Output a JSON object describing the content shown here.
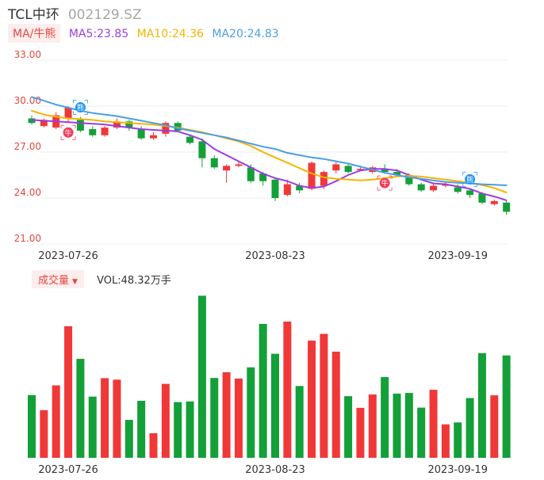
{
  "header": {
    "name": "TCL中环",
    "code": "002129.SZ"
  },
  "ma_legend": {
    "type_label": "MA/牛熊",
    "items": [
      {
        "label": "MA5:23.85",
        "color": "#9b3ddf"
      },
      {
        "label": "MA10:24.36",
        "color": "#f5b400"
      },
      {
        "label": "MA20:24.83",
        "color": "#4a9ee8"
      }
    ]
  },
  "vol_legend": {
    "type_label": "成交量",
    "value_label": "VOL:48.32万手"
  },
  "icons": {
    "bull_label": "牛",
    "bear_label": "熊",
    "markers": [
      {
        "type": "bear",
        "index": 4
      },
      {
        "type": "bull",
        "index": 3
      },
      {
        "type": "bull",
        "index": 29
      },
      {
        "type": "bear",
        "index": 36
      }
    ]
  },
  "colors": {
    "up": "#f03838",
    "down": "#13a038",
    "grid": "#ececec",
    "axis_label": "#e5473f",
    "date": "#333333"
  },
  "chart_data": [
    {
      "type": "candlestick",
      "y_ticks": [
        "33.00",
        "30.00",
        "27.00",
        "24.00",
        "21.00"
      ],
      "ylim": [
        21,
        33
      ],
      "x_labels": [
        {
          "index": 3,
          "label": "2023-07-26"
        },
        {
          "index": 20,
          "label": "2023-08-23"
        },
        {
          "index": 35,
          "label": "2023-09-19"
        }
      ],
      "candles": [
        {
          "o": 29.2,
          "c": 28.9,
          "h": 29.4,
          "l": 28.8
        },
        {
          "o": 28.7,
          "c": 29.1,
          "h": 29.2,
          "l": 28.6
        },
        {
          "o": 28.6,
          "c": 29.4,
          "h": 29.6,
          "l": 28.5
        },
        {
          "o": 29.2,
          "c": 29.9,
          "h": 30.0,
          "l": 28.9
        },
        {
          "o": 29.1,
          "c": 28.4,
          "h": 29.3,
          "l": 28.3
        },
        {
          "o": 28.5,
          "c": 28.1,
          "h": 28.7,
          "l": 28.0
        },
        {
          "o": 28.1,
          "c": 28.6,
          "h": 28.7,
          "l": 28.0
        },
        {
          "o": 28.6,
          "c": 29.0,
          "h": 29.2,
          "l": 28.5
        },
        {
          "o": 29.0,
          "c": 28.6,
          "h": 29.1,
          "l": 28.4
        },
        {
          "o": 28.5,
          "c": 27.9,
          "h": 28.7,
          "l": 27.8
        },
        {
          "o": 27.9,
          "c": 28.1,
          "h": 28.3,
          "l": 27.8
        },
        {
          "o": 28.2,
          "c": 28.9,
          "h": 29.0,
          "l": 28.0
        },
        {
          "o": 28.9,
          "c": 28.4,
          "h": 29.0,
          "l": 28.3
        },
        {
          "o": 28.0,
          "c": 27.6,
          "h": 28.1,
          "l": 27.5
        },
        {
          "o": 27.7,
          "c": 26.6,
          "h": 27.9,
          "l": 26.0
        },
        {
          "o": 26.6,
          "c": 26.0,
          "h": 26.8,
          "l": 25.9
        },
        {
          "o": 25.8,
          "c": 26.1,
          "h": 26.2,
          "l": 25.0
        },
        {
          "o": 26.1,
          "c": 26.2,
          "h": 26.4,
          "l": 26.0
        },
        {
          "o": 26.0,
          "c": 25.1,
          "h": 26.2,
          "l": 25.0
        },
        {
          "o": 25.6,
          "c": 25.1,
          "h": 25.7,
          "l": 24.8
        },
        {
          "o": 25.2,
          "c": 24.0,
          "h": 25.3,
          "l": 23.8
        },
        {
          "o": 24.2,
          "c": 24.9,
          "h": 25.2,
          "l": 24.1
        },
        {
          "o": 24.8,
          "c": 24.5,
          "h": 25.0,
          "l": 24.3
        },
        {
          "o": 24.6,
          "c": 26.3,
          "h": 26.4,
          "l": 24.5
        },
        {
          "o": 24.8,
          "c": 25.7,
          "h": 25.8,
          "l": 24.6
        },
        {
          "o": 25.8,
          "c": 26.2,
          "h": 26.4,
          "l": 25.6
        },
        {
          "o": 26.1,
          "c": 25.7,
          "h": 26.2,
          "l": 25.6
        },
        {
          "o": 25.9,
          "c": 25.9,
          "h": 26.1,
          "l": 25.8
        },
        {
          "o": 25.7,
          "c": 26.0,
          "h": 26.1,
          "l": 25.6
        },
        {
          "o": 25.9,
          "c": 25.7,
          "h": 26.2,
          "l": 25.6
        },
        {
          "o": 25.7,
          "c": 25.5,
          "h": 25.9,
          "l": 25.4
        },
        {
          "o": 25.5,
          "c": 24.9,
          "h": 25.6,
          "l": 24.8
        },
        {
          "o": 24.9,
          "c": 24.5,
          "h": 25.0,
          "l": 24.4
        },
        {
          "o": 24.5,
          "c": 24.8,
          "h": 25.0,
          "l": 24.4
        },
        {
          "o": 24.8,
          "c": 24.9,
          "h": 25.1,
          "l": 24.7
        },
        {
          "o": 24.7,
          "c": 24.4,
          "h": 24.9,
          "l": 24.3
        },
        {
          "o": 24.5,
          "c": 24.2,
          "h": 24.6,
          "l": 24.0
        },
        {
          "o": 24.3,
          "c": 23.7,
          "h": 24.4,
          "l": 23.6
        },
        {
          "o": 23.6,
          "c": 23.8,
          "h": 23.9,
          "l": 23.5
        },
        {
          "o": 23.7,
          "c": 23.1,
          "h": 23.8,
          "l": 22.9
        }
      ],
      "series": [
        {
          "name": "MA5",
          "color": "#9b3ddf",
          "values": [
            29.1,
            29.05,
            29.0,
            28.95,
            28.9,
            28.85,
            28.8,
            28.7,
            28.6,
            28.5,
            28.45,
            28.4,
            28.35,
            28.1,
            27.8,
            27.2,
            26.8,
            26.4,
            26.0,
            25.6,
            25.3,
            25.1,
            24.8,
            24.65,
            24.75,
            25.1,
            25.5,
            25.8,
            25.9,
            25.9,
            25.8,
            25.5,
            25.2,
            24.95,
            24.9,
            24.75,
            24.6,
            24.3,
            24.1,
            23.85
          ]
        },
        {
          "name": "MA10",
          "color": "#f5b400",
          "values": [
            29.7,
            29.45,
            29.3,
            29.2,
            29.15,
            29.1,
            29.0,
            28.95,
            28.9,
            28.85,
            28.8,
            28.7,
            28.6,
            28.45,
            28.3,
            28.1,
            27.9,
            27.7,
            27.4,
            27.0,
            26.65,
            26.3,
            25.95,
            25.6,
            25.35,
            25.25,
            25.2,
            25.15,
            25.2,
            25.3,
            25.4,
            25.45,
            25.4,
            25.3,
            25.2,
            25.1,
            25.0,
            24.85,
            24.65,
            24.36
          ]
        },
        {
          "name": "MA20",
          "color": "#4a9ee8",
          "values": [
            30.6,
            30.35,
            30.1,
            29.9,
            29.7,
            29.55,
            29.45,
            29.35,
            29.2,
            29.05,
            28.9,
            28.75,
            28.55,
            28.4,
            28.25,
            28.1,
            27.95,
            27.75,
            27.55,
            27.35,
            27.2,
            26.95,
            26.8,
            26.65,
            26.55,
            26.4,
            26.25,
            26.05,
            25.85,
            25.65,
            25.5,
            25.35,
            25.25,
            25.15,
            25.05,
            25.0,
            24.95,
            24.9,
            24.87,
            24.83
          ]
        }
      ]
    },
    {
      "type": "bar",
      "title": "成交量",
      "values": [
        29.6,
        22.5,
        34.2,
        62.1,
        46.7,
        28.9,
        37.6,
        36.9,
        17.9,
        26.9,
        11.6,
        34.9,
        26.3,
        26.6,
        76.5,
        37.7,
        40.4,
        37.4,
        42.7,
        63.2,
        49.1,
        64.3,
        33.9,
        55.3,
        58.5,
        50.1,
        29.1,
        23.6,
        29.9,
        38.1,
        30.3,
        30.6,
        23.7,
        32.1,
        15.8,
        16.7,
        28.2,
        49.4,
        29.5,
        48.32
      ]
    }
  ]
}
